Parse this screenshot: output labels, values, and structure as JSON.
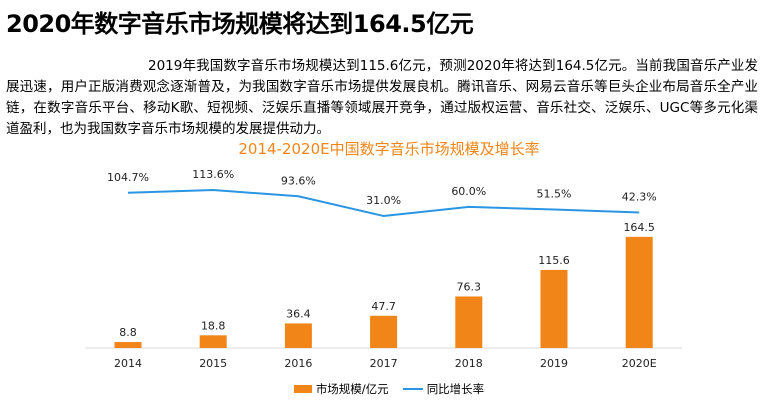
{
  "heading": "2020年数字音乐市场规模将达到164.5亿元",
  "paragraph": "2019年我国数字音乐市场规模达到115.6亿元，预测2020年将达到164.5亿元。当前我国音乐产业发展迅速，用户正版消费观念逐渐普及，为我国数字音乐市场提供发展良机。腾讯音乐、网易云音乐等巨头企业布局音乐全产业链，在数字音乐平台、移动K歌、短视频、泛娱乐直播等领域展开竞争，通过版权运营、音乐社交、泛娱乐、UGC等多元化渠道盈利，也为我国数字音乐市场规模的发展提供动力。",
  "chart_data": {
    "type": "bar",
    "title": "2014-2020E中国数字音乐市场规模及增长率",
    "categories": [
      "2014",
      "2015",
      "2016",
      "2017",
      "2018",
      "2019",
      "2020E"
    ],
    "series": [
      {
        "name": "市场规模/亿元",
        "type": "bar",
        "values": [
          8.8,
          18.8,
          36.4,
          47.7,
          76.3,
          115.6,
          164.5
        ],
        "labels": [
          "8.8",
          "18.8",
          "36.4",
          "47.7",
          "76.3",
          "115.6",
          "164.5"
        ]
      },
      {
        "name": "同比增长率",
        "type": "line",
        "values": [
          104.7,
          113.6,
          93.6,
          31.0,
          60.0,
          51.5,
          42.3
        ],
        "labels": [
          "104.7%",
          "113.6%",
          "93.6%",
          "31.0%",
          "60.0%",
          "51.5%",
          "42.3%"
        ]
      }
    ],
    "legend": "bottom",
    "grid": false,
    "colors": {
      "bar": "#f28518",
      "line": "#2a95e3",
      "title": "#f28518"
    }
  }
}
